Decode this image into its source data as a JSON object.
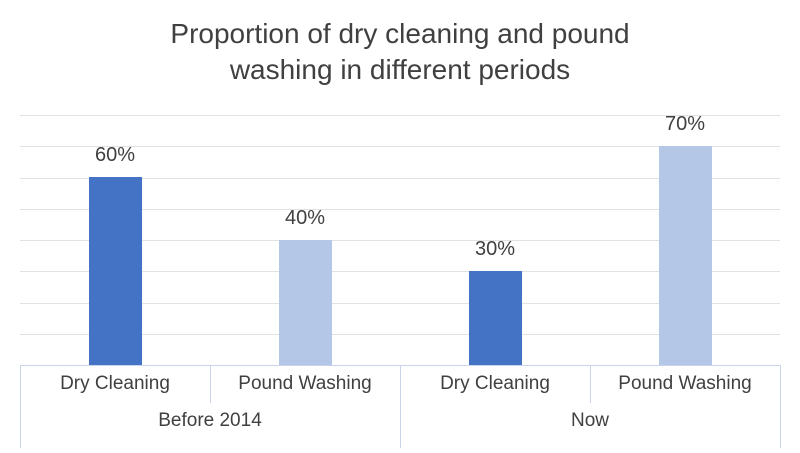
{
  "chart_data": {
    "type": "bar",
    "title": "Proportion of dry cleaning and pound washing in different periods",
    "title_lines": [
      "Proportion of dry cleaning and pound",
      "washing in different periods"
    ],
    "categories": [
      "Dry Cleaning",
      "Pound Washing"
    ],
    "groups": [
      {
        "label": "Before 2014",
        "bars": [
          {
            "category": "Dry Cleaning",
            "value": 60,
            "data_label": "60%",
            "color": "#4472C4"
          },
          {
            "category": "Pound Washing",
            "value": 40,
            "data_label": "40%",
            "color": "#B4C7E7"
          }
        ]
      },
      {
        "label": "Now",
        "bars": [
          {
            "category": "Dry Cleaning",
            "value": 30,
            "data_label": "30%",
            "color": "#4472C4"
          },
          {
            "category": "Pound Washing",
            "value": 70,
            "data_label": "70%",
            "color": "#B4C7E7"
          }
        ]
      }
    ],
    "xlabel": "",
    "ylabel": "",
    "ylim": [
      0,
      80
    ],
    "gridline_step": 10,
    "grid": true,
    "legend": false,
    "data_labels_visible": true,
    "y_axis_labels_visible": false,
    "colors": {
      "dry_cleaning": "#4472C4",
      "pound_washing": "#B4C7E7",
      "gridline": "#E2E2E2",
      "axis_line": "#C9D4EA",
      "text": "#404040"
    }
  }
}
